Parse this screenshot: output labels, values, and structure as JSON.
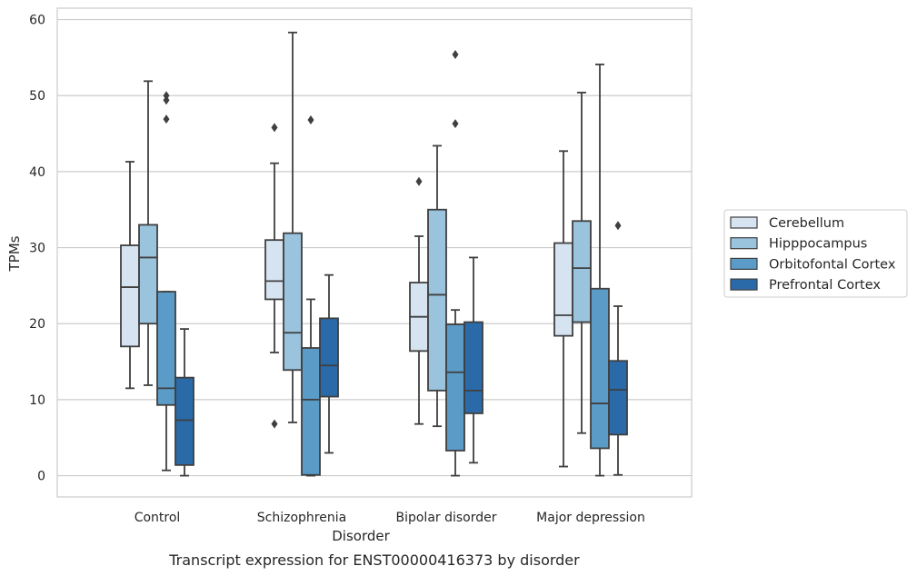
{
  "chart_data": {
    "type": "box",
    "title": "",
    "caption": "Transcript expression for ENST00000416373 by disorder",
    "xlabel": "Disorder",
    "ylabel": "TPMs",
    "ylim": [
      -2.8,
      61.5
    ],
    "yticks": [
      "0",
      "10",
      "20",
      "30",
      "40",
      "50",
      "60"
    ],
    "grid": "horizontal",
    "legend_position": "right",
    "categories": [
      "Control",
      "Schizophrenia",
      "Bipolar disorder",
      "Major depression"
    ],
    "series": [
      {
        "name": "Cerebellum",
        "color": "#d6e4f2",
        "boxes": [
          {
            "whisker_low": 11.5,
            "q1": 17.0,
            "median": 24.8,
            "q3": 30.3,
            "whisker_high": 41.3,
            "outliers": []
          },
          {
            "whisker_low": 16.2,
            "q1": 23.2,
            "median": 25.6,
            "q3": 31.0,
            "whisker_high": 41.1,
            "outliers": [
              45.8,
              6.8
            ]
          },
          {
            "whisker_low": 6.8,
            "q1": 16.4,
            "median": 20.9,
            "q3": 25.4,
            "whisker_high": 31.5,
            "outliers": [
              38.7
            ]
          },
          {
            "whisker_low": 1.2,
            "q1": 18.4,
            "median": 21.1,
            "q3": 30.6,
            "whisker_high": 42.7,
            "outliers": []
          }
        ]
      },
      {
        "name": "Hipppocampus",
        "color": "#9ac3dd",
        "boxes": [
          {
            "whisker_low": 11.9,
            "q1": 20.0,
            "median": 28.7,
            "q3": 33.0,
            "whisker_high": 51.9,
            "outliers": []
          },
          {
            "whisker_low": 7.0,
            "q1": 13.9,
            "median": 18.8,
            "q3": 31.9,
            "whisker_high": 58.3,
            "outliers": []
          },
          {
            "whisker_low": 6.5,
            "q1": 11.2,
            "median": 23.8,
            "q3": 35.0,
            "whisker_high": 43.4,
            "outliers": []
          },
          {
            "whisker_low": 5.6,
            "q1": 20.2,
            "median": 27.3,
            "q3": 33.5,
            "whisker_high": 50.4,
            "outliers": []
          }
        ]
      },
      {
        "name": "Orbitofontal Cortex",
        "color": "#5b9bc8",
        "boxes": [
          {
            "whisker_low": 0.7,
            "q1": 9.3,
            "median": 11.5,
            "q3": 24.2,
            "whisker_high": 24.2,
            "outliers": [
              50.0,
              49.4,
              46.9
            ]
          },
          {
            "whisker_low": 0.0,
            "q1": 0.1,
            "median": 10.0,
            "q3": 16.8,
            "whisker_high": 23.2,
            "outliers": [
              46.8
            ]
          },
          {
            "whisker_low": 0.0,
            "q1": 3.3,
            "median": 13.6,
            "q3": 19.9,
            "whisker_high": 21.8,
            "outliers": [
              55.4,
              46.3
            ]
          },
          {
            "whisker_low": 0.0,
            "q1": 3.6,
            "median": 9.5,
            "q3": 24.6,
            "whisker_high": 54.1,
            "outliers": []
          }
        ]
      },
      {
        "name": "Prefrontal Cortex",
        "color": "#2b6aa8",
        "boxes": [
          {
            "whisker_low": 0.0,
            "q1": 1.4,
            "median": 7.3,
            "q3": 12.9,
            "whisker_high": 19.3,
            "outliers": []
          },
          {
            "whisker_low": 3.0,
            "q1": 10.4,
            "median": 14.5,
            "q3": 20.7,
            "whisker_high": 26.4,
            "outliers": []
          },
          {
            "whisker_low": 1.7,
            "q1": 8.2,
            "median": 11.2,
            "q3": 20.2,
            "whisker_high": 28.7,
            "outliers": []
          },
          {
            "whisker_low": 0.1,
            "q1": 5.4,
            "median": 11.3,
            "q3": 15.1,
            "whisker_high": 22.3,
            "outliers": [
              32.9
            ]
          }
        ]
      }
    ]
  }
}
